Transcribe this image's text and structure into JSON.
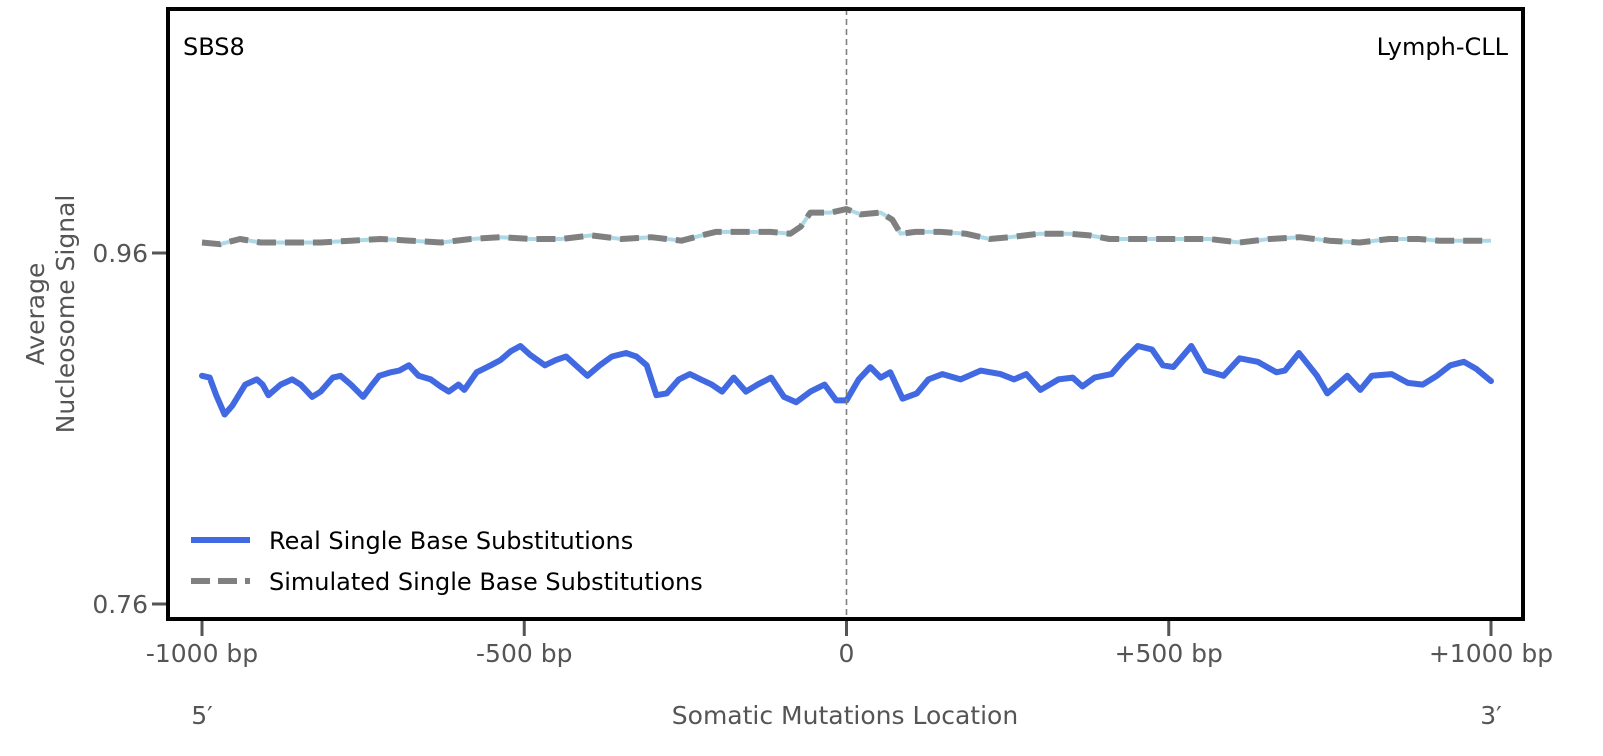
{
  "chart_data": {
    "type": "line",
    "signature_label": "SBS8",
    "cancer_type_label": "Lymph-CLL",
    "xlabel": "Somatic Mutations Location",
    "ylabel_line1": "Average",
    "ylabel_line2": "Nucleosome Signal",
    "five_prime_label": "5′",
    "three_prime_label": "3′",
    "xlim": [
      -1000,
      1000
    ],
    "ylim": [
      0.751,
      1.099
    ],
    "x_ticks": [
      {
        "value": -1000,
        "label": "-1000 bp"
      },
      {
        "value": -500,
        "label": "-500 bp"
      },
      {
        "value": 0,
        "label": "0"
      },
      {
        "value": 500,
        "label": "+500 bp"
      },
      {
        "value": 1000,
        "label": "+1000 bp"
      }
    ],
    "y_ticks": [
      {
        "value": 0.96,
        "label": "0.96"
      },
      {
        "value": 0.76,
        "label": "0.76"
      }
    ],
    "vertical_reference_x": 0,
    "grid": false,
    "legend_position": "lower-left",
    "series": [
      {
        "name": "Real Single Base Substitutions",
        "color": "#4169E1",
        "style": "solid",
        "x": [
          -1000,
          -988,
          -978,
          -965,
          -953,
          -933,
          -915,
          -906,
          -897,
          -878,
          -860,
          -847,
          -829,
          -816,
          -797,
          -785,
          -769,
          -750,
          -738,
          -725,
          -707,
          -694,
          -679,
          -664,
          -645,
          -630,
          -617,
          -602,
          -593,
          -574,
          -552,
          -537,
          -521,
          -506,
          -491,
          -468,
          -451,
          -435,
          -420,
          -402,
          -383,
          -364,
          -342,
          -326,
          -310,
          -295,
          -279,
          -260,
          -243,
          -226,
          -209,
          -193,
          -175,
          -156,
          -138,
          -117,
          -97,
          -78,
          -56,
          -34,
          -16,
          0,
          19,
          37,
          53,
          68,
          87,
          109,
          127,
          149,
          177,
          208,
          239,
          260,
          279,
          301,
          329,
          351,
          366,
          385,
          411,
          430,
          452,
          474,
          491,
          507,
          535,
          557,
          585,
          610,
          638,
          667,
          680,
          702,
          730,
          746,
          777,
          797,
          815,
          846,
          871,
          894,
          916,
          937,
          958,
          977,
          1000
        ],
        "y": [
          0.89,
          0.889,
          0.879,
          0.868,
          0.873,
          0.885,
          0.888,
          0.885,
          0.879,
          0.885,
          0.888,
          0.885,
          0.878,
          0.881,
          0.889,
          0.89,
          0.885,
          0.878,
          0.884,
          0.89,
          0.892,
          0.893,
          0.896,
          0.89,
          0.888,
          0.884,
          0.881,
          0.885,
          0.882,
          0.892,
          0.896,
          0.899,
          0.904,
          0.907,
          0.902,
          0.896,
          0.899,
          0.901,
          0.896,
          0.89,
          0.896,
          0.901,
          0.903,
          0.901,
          0.896,
          0.879,
          0.88,
          0.888,
          0.891,
          0.888,
          0.885,
          0.881,
          0.889,
          0.881,
          0.885,
          0.889,
          0.878,
          0.875,
          0.881,
          0.885,
          0.876,
          0.876,
          0.888,
          0.895,
          0.889,
          0.892,
          0.877,
          0.88,
          0.888,
          0.891,
          0.888,
          0.893,
          0.891,
          0.888,
          0.891,
          0.882,
          0.888,
          0.889,
          0.884,
          0.889,
          0.891,
          0.899,
          0.907,
          0.905,
          0.896,
          0.895,
          0.907,
          0.893,
          0.89,
          0.9,
          0.898,
          0.892,
          0.893,
          0.903,
          0.89,
          0.88,
          0.89,
          0.882,
          0.89,
          0.891,
          0.886,
          0.885,
          0.89,
          0.896,
          0.898,
          0.894,
          0.887
        ]
      },
      {
        "name": "Simulated Single Base Substitutions",
        "color": "#808080",
        "underlay_color": "#ADD8E6",
        "style": "dashed",
        "x": [
          -1000,
          -972,
          -941,
          -909,
          -863,
          -816,
          -769,
          -723,
          -676,
          -629,
          -583,
          -536,
          -490,
          -443,
          -396,
          -349,
          -303,
          -256,
          -225,
          -203,
          -164,
          -118,
          -87,
          -71,
          -56,
          -25,
          0,
          22,
          53,
          71,
          84,
          107,
          146,
          185,
          222,
          253,
          299,
          346,
          377,
          408,
          455,
          517,
          563,
          610,
          656,
          703,
          749,
          796,
          842,
          888,
          919,
          1000
        ],
        "y": [
          0.966,
          0.965,
          0.968,
          0.966,
          0.966,
          0.966,
          0.967,
          0.968,
          0.967,
          0.966,
          0.968,
          0.969,
          0.968,
          0.968,
          0.97,
          0.968,
          0.969,
          0.967,
          0.97,
          0.972,
          0.972,
          0.972,
          0.971,
          0.975,
          0.983,
          0.983,
          0.985,
          0.982,
          0.983,
          0.979,
          0.971,
          0.972,
          0.972,
          0.971,
          0.968,
          0.969,
          0.971,
          0.971,
          0.97,
          0.968,
          0.968,
          0.968,
          0.968,
          0.966,
          0.968,
          0.969,
          0.967,
          0.966,
          0.968,
          0.968,
          0.967,
          0.967
        ]
      }
    ]
  }
}
